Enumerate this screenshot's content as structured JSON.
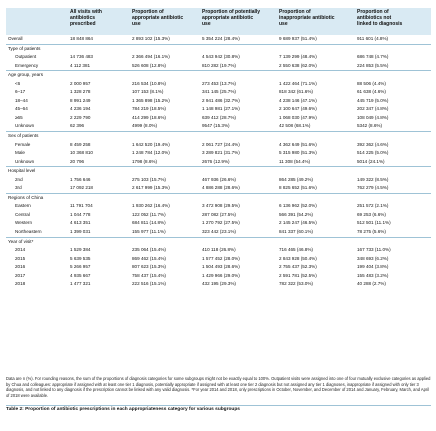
{
  "header": {
    "col0": "",
    "col1": "All visits with\nantibiotics\nprescribed",
    "col2": "Proportion of\nappropriate antibiotic\nuse",
    "col3": "Proportion of potentially\nappropriate antibiotic\nuse",
    "col4": "Proportion of\ninappropriate antibiotic\nuse",
    "col5": "Proportion of\nantibiotics not\nlinked to diagnosis"
  },
  "overall": [
    "Overall",
    "18 848 864",
    "2 893 102 (15.3%)",
    "5 354 224 (28.4%)",
    "9 689 937 (51.4%)",
    "911 601 (4.8%)"
  ],
  "sections": [
    {
      "title": "Type of patients",
      "rows": [
        [
          "Outpatient",
          "14 736 483",
          "2 366 494 (16.1%)",
          "4 543 942 (30.8%)",
          "7 139 299 (48.4%)",
          "686 748 (4.7%)"
        ],
        [
          "Emergency",
          "4 112 381",
          "526 608 (12.8%)",
          "810 282 (19.7%)",
          "2 550 638 (62.0%)",
          "224 853 (5.5%)"
        ]
      ]
    },
    {
      "title": "Age group, years",
      "rows": [
        [
          "<6",
          "2 000 957",
          "216 534 (10.8%)",
          "273 453 (13.7%)",
          "1 422 464 (71.1%)",
          "88 506 (4.4%)"
        ],
        [
          "6–17",
          "1 328 278",
          "107 153 (8.1%)",
          "341 145 (25.7%)",
          "818 342 (61.6%)",
          "61 638 (4.6%)"
        ],
        [
          "18–44",
          "8 991 249",
          "1 365 898 (15.2%)",
          "2 941 486 (32.7%)",
          "4 238 146 (47.1%)",
          "445 719 (5.0%)"
        ],
        [
          "45–64",
          "4 236 194",
          "784 219 (18.5%)",
          "1 148 981 (27.1%)",
          "2 100 647 (49.6%)",
          "202 347 (4.8%)"
        ],
        [
          "≥65",
          "2 229 790",
          "414 299 (18.6%)",
          "639 412 (28.7%)",
          "1 068 030 (47.9%)",
          "108 049 (4.8%)"
        ],
        [
          "Unknown",
          "62 396",
          "4999 (8.0%)",
          "9547 (15.3%)",
          "42 508 (68.1%)",
          "5342 (8.6%)"
        ]
      ]
    },
    {
      "title": "Sex of patients",
      "rows": [
        [
          "Female",
          "8 459 258",
          "1 642 520 (19.4%)",
          "2 061 727 (24.4%)",
          "4 362 649 (51.6%)",
          "392 362 (4.6%)"
        ],
        [
          "Male",
          "10 368 810",
          "1 248 784 (12.0%)",
          "3 289 821 (31.7%)",
          "5 315 980 (51.3%)",
          "514 225 (5.0%)"
        ],
        [
          "Unknown",
          "20 796",
          "1798 (8.6%)",
          "2676 (12.9%)",
          "11 308 (54.4%)",
          "5014 (24.1%)"
        ]
      ]
    },
    {
      "title": "Hospital level",
      "rows": [
        [
          "2nd",
          "1 756 646",
          "275 103 (15.7%)",
          "467 936 (26.6%)",
          "864 285 (49.2%)",
          "149 322 (8.5%)"
        ],
        [
          "3rd",
          "17 092 218",
          "2 617 999 (15.3%)",
          "4 886 288 (28.6%)",
          "8 825 652 (51.6%)",
          "762 279 (4.5%)"
        ]
      ]
    },
    {
      "title": "Regions of China",
      "rows": [
        [
          "Eastern",
          "11 791 704",
          "1 930 262 (16.4%)",
          "3 472 908 (29.5%)",
          "6 136 962 (52.0%)",
          "251 572 (2.1%)"
        ],
        [
          "Central",
          "1 044 778",
          "122 052 (11.7%)",
          "287 082 (27.5%)",
          "566 391 (54.2%)",
          "69 253 (6.6%)"
        ],
        [
          "Western",
          "4 613 351",
          "684 811 (14.8%)",
          "1 270 792 (27.5%)",
          "2 145 247 (46.5%)",
          "512 501 (11.1%)"
        ],
        [
          "Northeastern",
          "1 399 031",
          "155 977 (11.1%)",
          "323 442 (23.1%)",
          "841 337 (60.1%)",
          "78 275 (5.6%)"
        ]
      ]
    },
    {
      "title": "Year of visit*",
      "rows": [
        [
          "2014",
          "1 529 384",
          "235 064 (15.4%)",
          "410 118 (26.8%)",
          "716 465 (46.8%)",
          "167 733 (11.0%)"
        ],
        [
          "2015",
          "5 639 535",
          "869 462 (15.4%)",
          "1 577 452 (28.0%)",
          "2 843 928 (50.4%)",
          "348 693 (6.2%)"
        ],
        [
          "2016",
          "5 266 957",
          "807 623 (15.3%)",
          "1 504 493 (28.6%)",
          "2 755 437 (52.3%)",
          "199 404 (3.8%)"
        ],
        [
          "2017",
          "4 935 667",
          "758 437 (15.4%)",
          "1 429 966 (29.0%)",
          "2 591 781 (52.5%)",
          "155 483 (3.2%)"
        ],
        [
          "2018",
          "1 477 321",
          "222 516 (15.1%)",
          "432 195 (29.3%)",
          "782 322 (53.0%)",
          "40 288 (2.7%)"
        ]
      ]
    }
  ],
  "footnote": "Data are n (%). For rounding reasons, the sum of the proportions of diagnosis categories for some subgroups might not be exactly equal to 100%. Outpatient visits were assigned into one of four mutually exclusive categories as applied by Chua and colleagues: appropriate if assigned with at least one tier 1 diagnosis, potentially appropriate if assigned with at least one tier 2 diagnosis but not assigned any tier 1 diagnoses, inappropriate if assigned with only tier 3 diagnosis, and not linked to any diagnosis if the prescription cannot be linked with any valid diagnosis. *For year 2014 and 2018, only prescriptions in October, November, and December of 2014 and January, February, March, and April of 2018 were available.",
  "caption": "Table 2: Proportion of antibiotic prescriptions in each appropriateness category for various subgroups"
}
